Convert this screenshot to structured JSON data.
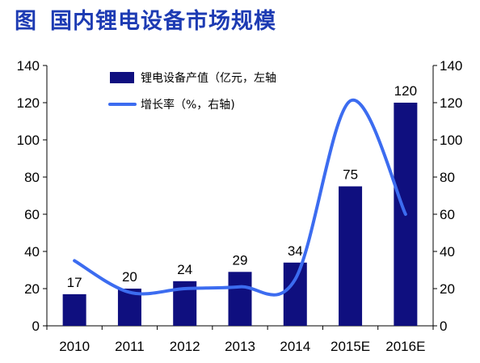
{
  "title": {
    "figure_label": "图",
    "text": "国内锂电设备市场规模"
  },
  "colors": {
    "bar": "#0f0f7f",
    "line": "#3c6cf0",
    "title": "#1d3bb3"
  },
  "chart_data": {
    "type": "bar",
    "categories": [
      "2010",
      "2011",
      "2012",
      "2013",
      "2014",
      "2015E",
      "2016E"
    ],
    "series": [
      {
        "name": "锂电设备产值（亿元，左轴",
        "type": "bar",
        "axis": "left",
        "values": [
          17,
          20,
          24,
          29,
          34,
          75,
          120
        ],
        "data_labels": [
          "17",
          "20",
          "24",
          "29",
          "34",
          "75",
          "120"
        ]
      },
      {
        "name": "增长率（%，右轴)",
        "type": "line",
        "axis": "right",
        "smooth": true,
        "values": [
          35,
          18,
          20,
          21,
          25,
          121,
          60
        ]
      }
    ],
    "left_axis": {
      "min": 0,
      "max": 140,
      "ticks": [
        "0",
        "20",
        "40",
        "60",
        "80",
        "100",
        "120",
        "140"
      ]
    },
    "right_axis": {
      "min": 0,
      "max": 140,
      "ticks": [
        "0",
        "20",
        "40",
        "60",
        "80",
        "100",
        "120",
        "140"
      ]
    },
    "legend_position": "top-left",
    "grid": false
  }
}
